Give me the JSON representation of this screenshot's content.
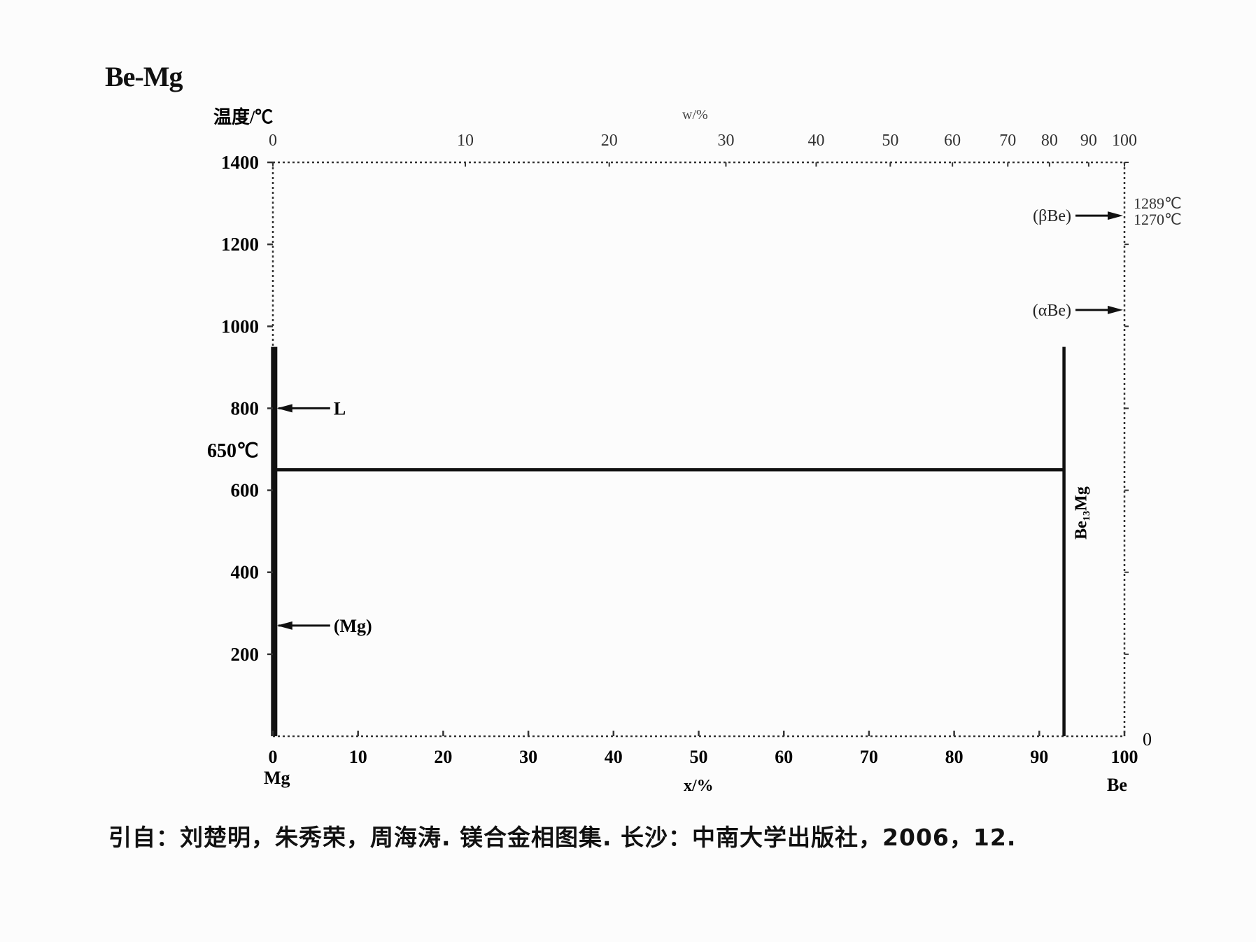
{
  "title": "Be-Mg",
  "caption": "引自：刘楚明，朱秀荣，周海涛. 镁合金相图集. 长沙：中南大学出版社，2006，12.",
  "chart_data": {
    "type": "line",
    "title": "Be-Mg",
    "ylabel": "温度/℃",
    "xlabel_bottom": "x/%",
    "xlabel_top": "w/%",
    "ylim": [
      0,
      1400
    ],
    "xlim": [
      0,
      100
    ],
    "yticks": [
      200,
      400,
      600,
      800,
      1000,
      1200,
      1400
    ],
    "ytick_labels": [
      "200",
      "400",
      "600",
      "800",
      "1000",
      "1200",
      "1400"
    ],
    "right_ytick_label": "0",
    "xticks_bottom": [
      0,
      10,
      20,
      30,
      40,
      50,
      60,
      70,
      80,
      90,
      100
    ],
    "xtick_labels_bottom": [
      "0",
      "10",
      "20",
      "30",
      "40",
      "50",
      "60",
      "70",
      "80",
      "90",
      "100"
    ],
    "xticks_top_positions": [
      0,
      22.6,
      39.5,
      53.2,
      63.8,
      72.5,
      79.8,
      86.3,
      91.2,
      95.8,
      100
    ],
    "xtick_labels_top": [
      "0",
      "10",
      "20",
      "30",
      "40",
      "50",
      "60",
      "70",
      "80",
      "90",
      "100"
    ],
    "left_component": "Mg",
    "right_component": "Be",
    "marked_temperature_label": "650℃",
    "marked_temperature": 650,
    "right_temperature_labels": [
      "1289℃",
      "1270℃"
    ],
    "right_temperature_values": [
      1289,
      1270
    ],
    "series": [
      {
        "x": [
          0.15,
          92.8
        ],
        "y": [
          650,
          650
        ]
      },
      {
        "x": [
          0.15,
          0.15
        ],
        "y": [
          0,
          950
        ]
      },
      {
        "x": [
          92.9,
          92.9
        ],
        "y": [
          0,
          950
        ]
      }
    ],
    "annotations": [
      {
        "text": "L",
        "x": 0.15,
        "y": 800
      },
      {
        "text": "(Mg)",
        "x": 0.15,
        "y": 270
      },
      {
        "text": "(βBe)",
        "x": 100,
        "y": 1270
      },
      {
        "text": "(αBe)",
        "x": 100,
        "y": 1040
      },
      {
        "text": "Be₁₃Mg",
        "x": 92.9,
        "y": 480
      }
    ],
    "grid": false
  }
}
